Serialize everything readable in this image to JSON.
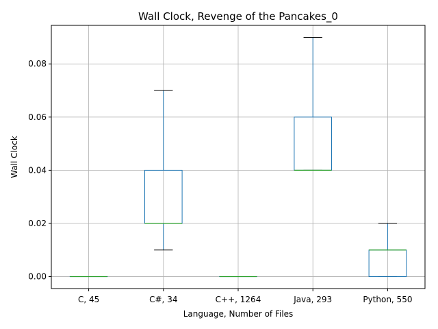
{
  "chart_data": {
    "type": "box",
    "title": "Wall Clock, Revenge of the Pancakes_0",
    "xlabel": "Language, Number of Files",
    "ylabel": "Wall Clock",
    "ylim": [
      -0.0045,
      0.0945
    ],
    "yticks": [
      0.0,
      0.02,
      0.04,
      0.06,
      0.08
    ],
    "ytick_labels": [
      "0.00",
      "0.02",
      "0.04",
      "0.06",
      "0.08"
    ],
    "grid": true,
    "categories": [
      "C, 45",
      "C#, 34",
      "C++, 1264",
      "Java, 293",
      "Python, 550"
    ],
    "boxes": [
      {
        "whislo": 0.0,
        "q1": 0.0,
        "med": 0.0,
        "q3": 0.0,
        "whishi": 0.0
      },
      {
        "whislo": 0.01,
        "q1": 0.02,
        "med": 0.02,
        "q3": 0.04,
        "whishi": 0.07
      },
      {
        "whislo": 0.0,
        "q1": 0.0,
        "med": 0.0,
        "q3": 0.0,
        "whishi": 0.0
      },
      {
        "whislo": 0.04,
        "q1": 0.04,
        "med": 0.04,
        "q3": 0.06,
        "whishi": 0.09
      },
      {
        "whislo": 0.0,
        "q1": 0.0,
        "med": 0.01,
        "q3": 0.01,
        "whishi": 0.02
      }
    ],
    "colors": {
      "box": "#1f77b4",
      "median": "#2ca02c",
      "whisker_cap": "#000000",
      "grid": "#b0b0b0"
    }
  }
}
